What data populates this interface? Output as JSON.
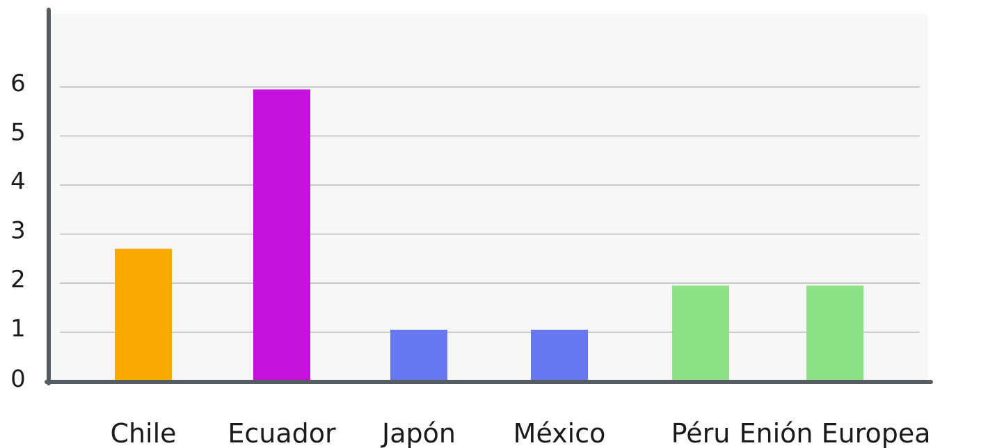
{
  "chart_data": {
    "type": "bar",
    "title": "",
    "xlabel": "",
    "ylabel": "",
    "ylim": [
      0,
      7
    ],
    "yticks": [
      0,
      1,
      2,
      3,
      4,
      5,
      6
    ],
    "grid": "horizontal",
    "categories": [
      "Chile",
      "Ecuador",
      "Japón",
      "México",
      "Péru",
      "Enión Europea"
    ],
    "values": [
      2.7,
      5.95,
      1.05,
      1.05,
      1.95,
      1.95
    ],
    "colors": [
      "#FBA800",
      "#C610DD",
      "#6677F0",
      "#6677F0",
      "#8DE285",
      "#8DE285"
    ]
  },
  "style": {
    "plot_background": "#F7F7F7",
    "axis_color": "#555C62",
    "grid_color": "#B8B8B8"
  }
}
